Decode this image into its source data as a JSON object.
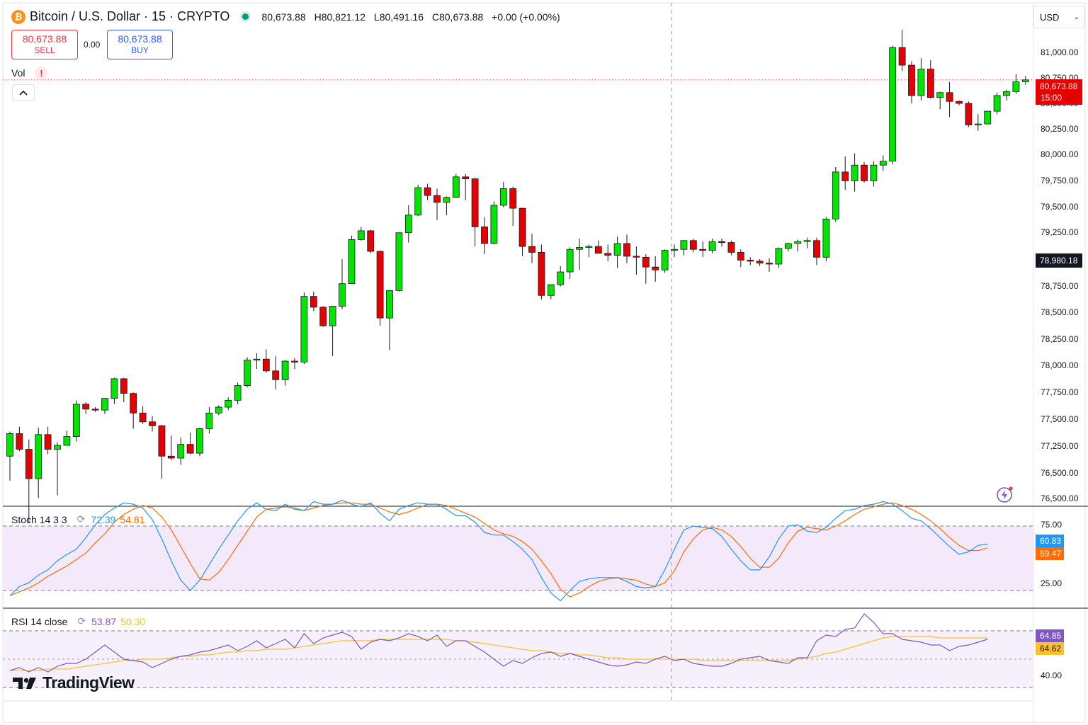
{
  "header": {
    "coin_glyph": "₿",
    "symbol_title": "Bitcoin / U.S. Dollar · 15 · CRYPTO",
    "open": "80,673.88",
    "high": "H80,821.12",
    "low": "L80,491.16",
    "close": "C80,673.88",
    "change": "+0.00 (+0.00%)"
  },
  "trade": {
    "sell_price": "80,673.88",
    "sell_label": "SELL",
    "spread": "0.00",
    "buy_price": "80,673.88",
    "buy_label": "BUY"
  },
  "volume": {
    "label": "Vol",
    "warning_glyph": "!"
  },
  "currency": {
    "value": "USD"
  },
  "price_axis": {
    "ticks": [
      "81,000.00",
      "80,750.00",
      "80,500.00",
      "80,250.00",
      "80,000.00",
      "79,750.00",
      "79,500.00",
      "79,250.00",
      "79,000.00",
      "78,750.00",
      "78,500.00",
      "78,250.00",
      "78,000.00",
      "77,750.00",
      "77,500.00",
      "77,250.00",
      "76,500.00",
      "76,500.00"
    ],
    "last_price_label": "80,673.88",
    "countdown_label": "15:00",
    "crosshair_price_label": "78,980.18"
  },
  "stoch": {
    "title": "Stoch 14 3 3",
    "k_value": "72.39",
    "d_value": "54.81",
    "ticks": [
      "75.00",
      "25.00"
    ],
    "k_label": "60.83",
    "d_label": "59.47",
    "k_color": "#2196f3",
    "d_color": "#ff6d00",
    "k": [
      21,
      28,
      31,
      37,
      41,
      48,
      53,
      57,
      66,
      76,
      84,
      89,
      93,
      92,
      89,
      80,
      65,
      48,
      33,
      25,
      33,
      45,
      57,
      68,
      79,
      88,
      93,
      88,
      87,
      92,
      88,
      87,
      94,
      92,
      92,
      95,
      92,
      90,
      93,
      85,
      79,
      88,
      91,
      93,
      92,
      92,
      88,
      83,
      83,
      78,
      70,
      68,
      68,
      63,
      57,
      49,
      35,
      23,
      17,
      25,
      32,
      34,
      35,
      35,
      35,
      32,
      28,
      27,
      28,
      41,
      57,
      72,
      75,
      74,
      73,
      67,
      57,
      48,
      41,
      41,
      51,
      65,
      75,
      76,
      71,
      70,
      74,
      81,
      87,
      88,
      91,
      92,
      94,
      92,
      87,
      81,
      79,
      73,
      66,
      59,
      53,
      55,
      60,
      61
    ],
    "d": [
      21,
      24,
      27,
      31,
      36,
      40,
      44,
      49,
      54,
      62,
      69,
      78,
      84,
      88,
      91,
      89,
      82,
      72,
      59,
      46,
      34,
      33,
      39,
      49,
      60,
      71,
      82,
      88,
      89,
      90,
      89,
      87,
      89,
      91,
      92,
      93,
      93,
      92,
      92,
      89,
      86,
      84,
      86,
      89,
      92,
      92,
      91,
      88,
      85,
      82,
      77,
      72,
      69,
      67,
      63,
      57,
      48,
      38,
      26,
      20,
      23,
      28,
      32,
      34,
      35,
      34,
      33,
      30,
      28,
      31,
      40,
      55,
      65,
      72,
      74,
      72,
      67,
      59,
      50,
      43,
      43,
      50,
      62,
      71,
      74,
      73,
      72,
      75,
      79,
      84,
      88,
      90,
      92,
      93,
      91,
      88,
      84,
      79,
      73,
      66,
      60,
      56,
      56,
      58
    ]
  },
  "rsi": {
    "title": "RSI 14 close",
    "rsi_value": "53.87",
    "ma_value": "50.30",
    "ticks": [
      "40.00"
    ],
    "rsi_label": "64.85",
    "ma_label": "64.62",
    "rsi_color": "#7e57c2",
    "ma_color": "#fbc02d",
    "rsi": [
      42,
      44,
      41,
      44,
      41,
      45,
      47,
      47,
      50,
      55,
      60,
      55,
      50,
      49,
      48,
      44,
      47,
      50,
      52,
      53,
      55,
      56,
      58,
      60,
      56,
      59,
      63,
      58,
      61,
      64,
      58,
      68,
      61,
      65,
      67,
      69,
      66,
      57,
      62,
      64,
      63,
      65,
      68,
      66,
      63,
      67,
      59,
      63,
      63,
      59,
      55,
      50,
      45,
      49,
      47,
      51,
      54,
      55,
      52,
      54,
      52,
      50,
      48,
      46,
      45,
      46,
      48,
      47,
      50,
      52,
      49,
      50,
      47,
      46,
      45,
      45,
      47,
      50,
      51,
      52,
      49,
      48,
      47,
      51,
      51,
      63,
      67,
      66,
      71,
      72,
      82,
      76,
      68,
      68,
      64,
      63,
      62,
      60,
      60,
      56,
      59,
      60,
      62,
      64
    ],
    "ma": [
      42,
      42,
      42,
      42,
      43,
      43,
      43,
      44,
      45,
      46,
      47,
      48,
      49,
      49,
      50,
      50,
      50,
      51,
      52,
      52,
      53,
      53,
      54,
      55,
      55,
      56,
      56,
      57,
      57,
      57,
      58,
      59,
      60,
      61,
      62,
      63,
      63,
      63,
      63,
      64,
      64,
      64,
      64,
      64,
      64,
      64,
      64,
      63,
      63,
      62,
      61,
      60,
      59,
      58,
      57,
      56,
      56,
      55,
      54,
      54,
      53,
      53,
      52,
      51,
      51,
      50,
      50,
      50,
      50,
      50,
      50,
      50,
      50,
      49,
      49,
      49,
      49,
      49,
      49,
      49,
      49,
      49,
      49,
      50,
      51,
      52,
      54,
      55,
      57,
      59,
      61,
      63,
      65,
      66,
      66,
      66,
      66,
      66,
      65,
      65,
      65,
      65,
      65,
      65
    ]
  },
  "chart_data": {
    "type": "candlestick",
    "symbol": "BTCUSD",
    "interval": "15",
    "up_color": "#00e600",
    "down_color": "#e60000",
    "y_unit": "USD",
    "ylim": [
      76375,
      81375
    ],
    "candles": [
      {
        "o": 76850,
        "h": 77100,
        "l": 76600,
        "c": 77080
      },
      {
        "o": 77080,
        "h": 77150,
        "l": 76900,
        "c": 76920
      },
      {
        "o": 76920,
        "h": 77020,
        "l": 76170,
        "c": 76620
      },
      {
        "o": 76620,
        "h": 77140,
        "l": 76420,
        "c": 77070
      },
      {
        "o": 77070,
        "h": 77150,
        "l": 76870,
        "c": 76920
      },
      {
        "o": 76920,
        "h": 76990,
        "l": 76450,
        "c": 76960
      },
      {
        "o": 76960,
        "h": 77110,
        "l": 76960,
        "c": 77050
      },
      {
        "o": 77050,
        "h": 77420,
        "l": 77000,
        "c": 77380
      },
      {
        "o": 77380,
        "h": 77400,
        "l": 77280,
        "c": 77330
      },
      {
        "o": 77330,
        "h": 77350,
        "l": 77300,
        "c": 77320
      },
      {
        "o": 77320,
        "h": 77440,
        "l": 77280,
        "c": 77440
      },
      {
        "o": 77440,
        "h": 77650,
        "l": 77380,
        "c": 77640
      },
      {
        "o": 77640,
        "h": 77650,
        "l": 77400,
        "c": 77490
      },
      {
        "o": 77490,
        "h": 77500,
        "l": 77130,
        "c": 77290
      },
      {
        "o": 77290,
        "h": 77360,
        "l": 77180,
        "c": 77200
      },
      {
        "o": 77200,
        "h": 77260,
        "l": 77100,
        "c": 77160
      },
      {
        "o": 77160,
        "h": 77170,
        "l": 76620,
        "c": 76850
      },
      {
        "o": 76850,
        "h": 77060,
        "l": 76810,
        "c": 76830
      },
      {
        "o": 76830,
        "h": 77040,
        "l": 76760,
        "c": 76970
      },
      {
        "o": 76970,
        "h": 77090,
        "l": 76870,
        "c": 76880
      },
      {
        "o": 76880,
        "h": 77140,
        "l": 76850,
        "c": 77130
      },
      {
        "o": 77130,
        "h": 77350,
        "l": 77080,
        "c": 77290
      },
      {
        "o": 77290,
        "h": 77370,
        "l": 77270,
        "c": 77350
      },
      {
        "o": 77350,
        "h": 77450,
        "l": 77320,
        "c": 77420
      },
      {
        "o": 77420,
        "h": 77600,
        "l": 77380,
        "c": 77570
      },
      {
        "o": 77570,
        "h": 77860,
        "l": 77550,
        "c": 77830
      },
      {
        "o": 77830,
        "h": 77900,
        "l": 77740,
        "c": 77840
      },
      {
        "o": 77840,
        "h": 77940,
        "l": 77700,
        "c": 77720
      },
      {
        "o": 77720,
        "h": 77870,
        "l": 77530,
        "c": 77630
      },
      {
        "o": 77630,
        "h": 77830,
        "l": 77570,
        "c": 77820
      },
      {
        "o": 77820,
        "h": 77850,
        "l": 77740,
        "c": 77810
      },
      {
        "o": 77810,
        "h": 78520,
        "l": 77790,
        "c": 78480
      },
      {
        "o": 78480,
        "h": 78530,
        "l": 78330,
        "c": 78370
      },
      {
        "o": 78370,
        "h": 78380,
        "l": 78170,
        "c": 78180
      },
      {
        "o": 78180,
        "h": 78370,
        "l": 77870,
        "c": 78380
      },
      {
        "o": 78380,
        "h": 78860,
        "l": 78350,
        "c": 78610
      },
      {
        "o": 78610,
        "h": 79100,
        "l": 78610,
        "c": 79060
      },
      {
        "o": 79060,
        "h": 79190,
        "l": 79050,
        "c": 79150
      },
      {
        "o": 79150,
        "h": 79160,
        "l": 78920,
        "c": 78940
      },
      {
        "o": 78940,
        "h": 78950,
        "l": 78180,
        "c": 78260
      },
      {
        "o": 78260,
        "h": 78540,
        "l": 77930,
        "c": 78540
      },
      {
        "o": 78540,
        "h": 79130,
        "l": 78530,
        "c": 79130
      },
      {
        "o": 79130,
        "h": 79410,
        "l": 79030,
        "c": 79310
      },
      {
        "o": 79310,
        "h": 79620,
        "l": 79300,
        "c": 79590
      },
      {
        "o": 79590,
        "h": 79630,
        "l": 79460,
        "c": 79510
      },
      {
        "o": 79510,
        "h": 79580,
        "l": 79260,
        "c": 79440
      },
      {
        "o": 79440,
        "h": 79500,
        "l": 79310,
        "c": 79490
      },
      {
        "o": 79490,
        "h": 79730,
        "l": 79490,
        "c": 79700
      },
      {
        "o": 79700,
        "h": 79730,
        "l": 79460,
        "c": 79680
      },
      {
        "o": 79680,
        "h": 79690,
        "l": 78990,
        "c": 79190
      },
      {
        "o": 79190,
        "h": 79290,
        "l": 78910,
        "c": 79020
      },
      {
        "o": 79020,
        "h": 79450,
        "l": 79010,
        "c": 79410
      },
      {
        "o": 79410,
        "h": 79650,
        "l": 79390,
        "c": 79580
      },
      {
        "o": 79580,
        "h": 79600,
        "l": 79200,
        "c": 79380
      },
      {
        "o": 79380,
        "h": 79380,
        "l": 78890,
        "c": 78990
      },
      {
        "o": 78990,
        "h": 79120,
        "l": 78820,
        "c": 78930
      },
      {
        "o": 78930,
        "h": 79010,
        "l": 78450,
        "c": 78490
      },
      {
        "o": 78490,
        "h": 78600,
        "l": 78450,
        "c": 78600
      },
      {
        "o": 78600,
        "h": 78790,
        "l": 78580,
        "c": 78730
      },
      {
        "o": 78730,
        "h": 78980,
        "l": 78660,
        "c": 78960
      },
      {
        "o": 78960,
        "h": 79070,
        "l": 78750,
        "c": 78980
      },
      {
        "o": 78980,
        "h": 79010,
        "l": 78880,
        "c": 78990
      },
      {
        "o": 78990,
        "h": 79050,
        "l": 78930,
        "c": 78920
      },
      {
        "o": 78920,
        "h": 79010,
        "l": 78840,
        "c": 78900
      },
      {
        "o": 78900,
        "h": 79090,
        "l": 78770,
        "c": 79020
      },
      {
        "o": 79020,
        "h": 79110,
        "l": 78820,
        "c": 78890
      },
      {
        "o": 78890,
        "h": 78990,
        "l": 78700,
        "c": 78880
      },
      {
        "o": 78880,
        "h": 78910,
        "l": 78610,
        "c": 78780
      },
      {
        "o": 78780,
        "h": 78890,
        "l": 78630,
        "c": 78750
      },
      {
        "o": 78750,
        "h": 78960,
        "l": 78720,
        "c": 78950
      },
      {
        "o": 78950,
        "h": 79010,
        "l": 78880,
        "c": 78960
      },
      {
        "o": 78960,
        "h": 79040,
        "l": 78900,
        "c": 79050
      },
      {
        "o": 79050,
        "h": 79070,
        "l": 78930,
        "c": 78960
      },
      {
        "o": 78960,
        "h": 79040,
        "l": 78880,
        "c": 78950
      },
      {
        "o": 78950,
        "h": 79070,
        "l": 78920,
        "c": 79040
      },
      {
        "o": 79040,
        "h": 79070,
        "l": 78990,
        "c": 79030
      },
      {
        "o": 79030,
        "h": 79050,
        "l": 78900,
        "c": 78930
      },
      {
        "o": 78930,
        "h": 78960,
        "l": 78780,
        "c": 78850
      },
      {
        "o": 78850,
        "h": 78880,
        "l": 78800,
        "c": 78840
      },
      {
        "o": 78840,
        "h": 78860,
        "l": 78790,
        "c": 78820
      },
      {
        "o": 78820,
        "h": 78870,
        "l": 78730,
        "c": 78810
      },
      {
        "o": 78810,
        "h": 78980,
        "l": 78770,
        "c": 78970
      },
      {
        "o": 78970,
        "h": 79030,
        "l": 78940,
        "c": 79020
      },
      {
        "o": 79020,
        "h": 79060,
        "l": 78940,
        "c": 79040
      },
      {
        "o": 79040,
        "h": 79080,
        "l": 78970,
        "c": 79050
      },
      {
        "o": 79050,
        "h": 79080,
        "l": 78800,
        "c": 78880
      },
      {
        "o": 78880,
        "h": 79290,
        "l": 78840,
        "c": 79270
      },
      {
        "o": 79270,
        "h": 79800,
        "l": 79240,
        "c": 79750
      },
      {
        "o": 79750,
        "h": 79910,
        "l": 79570,
        "c": 79660
      },
      {
        "o": 79660,
        "h": 79940,
        "l": 79550,
        "c": 79820
      },
      {
        "o": 79820,
        "h": 79850,
        "l": 79640,
        "c": 79660
      },
      {
        "o": 79660,
        "h": 79860,
        "l": 79600,
        "c": 79820
      },
      {
        "o": 79820,
        "h": 79920,
        "l": 79760,
        "c": 79860
      },
      {
        "o": 79860,
        "h": 81040,
        "l": 79830,
        "c": 81020
      },
      {
        "o": 81020,
        "h": 81200,
        "l": 80780,
        "c": 80840
      },
      {
        "o": 80840,
        "h": 80880,
        "l": 80450,
        "c": 80530
      },
      {
        "o": 80530,
        "h": 80910,
        "l": 80480,
        "c": 80800
      },
      {
        "o": 80800,
        "h": 80890,
        "l": 80500,
        "c": 80510
      },
      {
        "o": 80510,
        "h": 80570,
        "l": 80390,
        "c": 80560
      },
      {
        "o": 80560,
        "h": 80670,
        "l": 80310,
        "c": 80470
      },
      {
        "o": 80470,
        "h": 80480,
        "l": 80430,
        "c": 80450
      },
      {
        "o": 80450,
        "h": 80470,
        "l": 80210,
        "c": 80230
      },
      {
        "o": 80230,
        "h": 80340,
        "l": 80170,
        "c": 80240
      },
      {
        "o": 80240,
        "h": 80370,
        "l": 80240,
        "c": 80370
      },
      {
        "o": 80370,
        "h": 80560,
        "l": 80340,
        "c": 80530
      },
      {
        "o": 80530,
        "h": 80590,
        "l": 80480,
        "c": 80570
      },
      {
        "o": 80570,
        "h": 80750,
        "l": 80550,
        "c": 80670
      },
      {
        "o": 80670,
        "h": 80730,
        "l": 80640,
        "c": 80690
      }
    ]
  },
  "watermark": {
    "text": "TradingView"
  }
}
